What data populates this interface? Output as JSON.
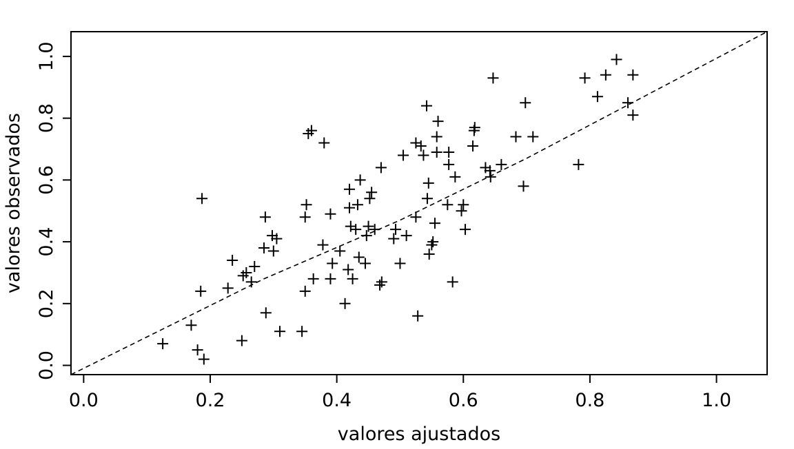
{
  "chart_data": {
    "type": "scatter",
    "title": "",
    "xlabel": "valores ajustados",
    "ylabel": "valores observados",
    "xlim": [
      -0.02,
      1.08
    ],
    "ylim": [
      -0.03,
      1.08
    ],
    "xticks": [
      0.0,
      0.2,
      0.4,
      0.6,
      0.8,
      1.0
    ],
    "xtick_labels": [
      "0.0",
      "0.2",
      "0.4",
      "0.6",
      "0.8",
      "1.0"
    ],
    "yticks": [
      0.0,
      0.2,
      0.4,
      0.6,
      0.8,
      1.0
    ],
    "ytick_labels": [
      "0.0",
      "0.2",
      "0.4",
      "0.6",
      "0.8",
      "1.0"
    ],
    "marker": "plus",
    "grid": false,
    "points": [
      [
        0.125,
        0.07
      ],
      [
        0.17,
        0.13
      ],
      [
        0.18,
        0.05
      ],
      [
        0.185,
        0.24
      ],
      [
        0.187,
        0.54
      ],
      [
        0.19,
        0.02
      ],
      [
        0.228,
        0.25
      ],
      [
        0.235,
        0.34
      ],
      [
        0.25,
        0.08
      ],
      [
        0.252,
        0.29
      ],
      [
        0.257,
        0.3
      ],
      [
        0.265,
        0.27
      ],
      [
        0.27,
        0.32
      ],
      [
        0.285,
        0.38
      ],
      [
        0.287,
        0.48
      ],
      [
        0.288,
        0.17
      ],
      [
        0.298,
        0.42
      ],
      [
        0.3,
        0.37
      ],
      [
        0.305,
        0.41
      ],
      [
        0.31,
        0.11
      ],
      [
        0.345,
        0.11
      ],
      [
        0.35,
        0.24
      ],
      [
        0.35,
        0.48
      ],
      [
        0.352,
        0.52
      ],
      [
        0.355,
        0.75
      ],
      [
        0.36,
        0.76
      ],
      [
        0.363,
        0.28
      ],
      [
        0.378,
        0.39
      ],
      [
        0.38,
        0.72
      ],
      [
        0.39,
        0.49
      ],
      [
        0.39,
        0.28
      ],
      [
        0.393,
        0.33
      ],
      [
        0.405,
        0.37
      ],
      [
        0.413,
        0.2
      ],
      [
        0.418,
        0.31
      ],
      [
        0.42,
        0.51
      ],
      [
        0.42,
        0.57
      ],
      [
        0.422,
        0.45
      ],
      [
        0.425,
        0.28
      ],
      [
        0.43,
        0.44
      ],
      [
        0.433,
        0.52
      ],
      [
        0.435,
        0.35
      ],
      [
        0.437,
        0.6
      ],
      [
        0.445,
        0.33
      ],
      [
        0.447,
        0.42
      ],
      [
        0.45,
        0.45
      ],
      [
        0.452,
        0.54
      ],
      [
        0.455,
        0.56
      ],
      [
        0.46,
        0.44
      ],
      [
        0.468,
        0.26
      ],
      [
        0.47,
        0.64
      ],
      [
        0.471,
        0.27
      ],
      [
        0.49,
        0.41
      ],
      [
        0.493,
        0.44
      ],
      [
        0.5,
        0.33
      ],
      [
        0.505,
        0.68
      ],
      [
        0.51,
        0.42
      ],
      [
        0.525,
        0.72
      ],
      [
        0.525,
        0.48
      ],
      [
        0.528,
        0.16
      ],
      [
        0.533,
        0.71
      ],
      [
        0.537,
        0.68
      ],
      [
        0.542,
        0.84
      ],
      [
        0.543,
        0.54
      ],
      [
        0.545,
        0.59
      ],
      [
        0.546,
        0.36
      ],
      [
        0.55,
        0.39
      ],
      [
        0.552,
        0.4
      ],
      [
        0.555,
        0.46
      ],
      [
        0.558,
        0.74
      ],
      [
        0.558,
        0.69
      ],
      [
        0.56,
        0.79
      ],
      [
        0.575,
        0.52
      ],
      [
        0.577,
        0.69
      ],
      [
        0.577,
        0.65
      ],
      [
        0.583,
        0.27
      ],
      [
        0.587,
        0.61
      ],
      [
        0.597,
        0.5
      ],
      [
        0.6,
        0.52
      ],
      [
        0.603,
        0.44
      ],
      [
        0.615,
        0.71
      ],
      [
        0.617,
        0.76
      ],
      [
        0.618,
        0.77
      ],
      [
        0.635,
        0.64
      ],
      [
        0.642,
        0.63
      ],
      [
        0.643,
        0.61
      ],
      [
        0.647,
        0.93
      ],
      [
        0.66,
        0.65
      ],
      [
        0.683,
        0.74
      ],
      [
        0.695,
        0.58
      ],
      [
        0.698,
        0.85
      ],
      [
        0.71,
        0.74
      ],
      [
        0.782,
        0.65
      ],
      [
        0.792,
        0.93
      ],
      [
        0.812,
        0.87
      ],
      [
        0.825,
        0.94
      ],
      [
        0.842,
        0.99
      ],
      [
        0.86,
        0.85
      ],
      [
        0.868,
        0.94
      ],
      [
        0.868,
        0.81
      ]
    ],
    "fit_line": {
      "style": "dashed",
      "points": [
        [
          -0.02,
          -0.03
        ],
        [
          0.285,
          0.28
        ],
        [
          0.5,
          0.47
        ],
        [
          0.7,
          0.67
        ],
        [
          1.08,
          1.08
        ]
      ]
    }
  }
}
